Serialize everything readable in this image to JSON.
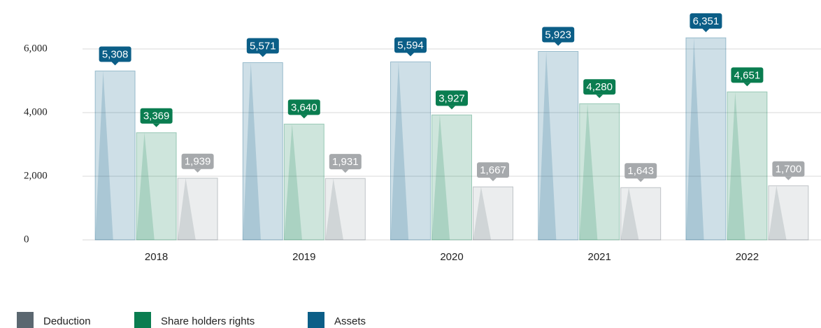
{
  "chart_data": {
    "type": "bar",
    "categories": [
      "2018",
      "2019",
      "2020",
      "2021",
      "2022"
    ],
    "series": [
      {
        "name": "Deduction",
        "color": "#5b6770",
        "values": [
          1939,
          1931,
          1667,
          1643,
          1700
        ],
        "value_labels": [
          "1,939",
          "1,931",
          "1,667",
          "1,643",
          "1,700"
        ]
      },
      {
        "name": "Share holders rights",
        "color": "#0a7d50",
        "values": [
          3369,
          3640,
          3927,
          4280,
          4651
        ],
        "value_labels": [
          "3,369",
          "3,640",
          "3,927",
          "4,280",
          "4,651"
        ]
      },
      {
        "name": "Assets",
        "color": "#0b5e87",
        "values": [
          5308,
          5571,
          5594,
          5923,
          6351
        ],
        "value_labels": [
          "5,308",
          "5,571",
          "5,594",
          "5,923",
          "6,351"
        ]
      }
    ],
    "ylim": [
      0,
      6000
    ],
    "yticks": [
      0,
      {
        "value": 2000,
        "label": "2,000"
      },
      {
        "value": 4000,
        "label": "4,000"
      },
      {
        "value": 6000,
        "label": "6,000"
      }
    ],
    "grid": true,
    "legend": "bottom-left"
  }
}
